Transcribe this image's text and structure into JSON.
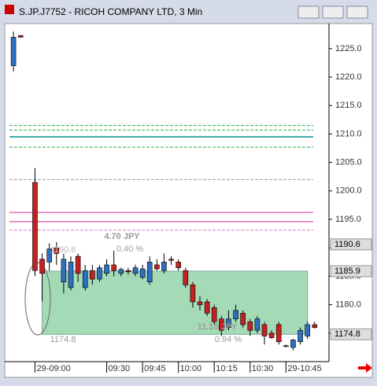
{
  "chart_data": {
    "type": "candlestick",
    "title": "S.JP.J7752 - RICOH COMPANY LTD, 3 Min",
    "x": [
      -9,
      -6,
      0,
      3,
      6,
      9,
      12,
      15,
      18,
      21,
      24,
      27,
      30,
      33,
      36,
      39,
      42,
      45,
      48,
      51,
      54,
      57,
      60,
      63,
      66,
      69,
      72,
      75,
      78,
      81,
      84,
      87,
      90,
      93,
      96,
      99,
      102,
      105,
      108,
      111,
      114,
      117
    ],
    "open": [
      1222,
      1227.3,
      1201.5,
      1188,
      1187.5,
      1190,
      1184,
      1183,
      1188.5,
      1183,
      1186,
      1184.5,
      1185.5,
      1187,
      1185.5,
      1186,
      1185.5,
      1184.8,
      1184,
      1187,
      1186,
      1188,
      1187.5,
      1186,
      1183.5,
      1180.5,
      1180.5,
      1179.5,
      1177.5,
      1176,
      1177.5,
      1178.5,
      1177,
      1175.5,
      1176.5,
      1175,
      1176.5,
      1172.8,
      1172.5,
      1173.5,
      1174.5,
      1176.5
    ],
    "high": [
      1228,
      1227.4,
      1204,
      1189,
      1190.8,
      1191,
      1189,
      1188.5,
      1189,
      1187,
      1187,
      1187,
      1188,
      1189.5,
      1186.5,
      1186.5,
      1187,
      1187,
      1188.5,
      1188,
      1189,
      1188.5,
      1188,
      1186.5,
      1184,
      1181.5,
      1181,
      1180,
      1178,
      1179,
      1180,
      1179,
      1177.5,
      1178,
      1177,
      1175.5,
      1177,
      1173,
      1174,
      1176,
      1177,
      1177
    ],
    "low": [
      1221,
      1227,
      1185,
      1180.6,
      1186,
      1187,
      1182,
      1182.5,
      1184,
      1182.5,
      1183.5,
      1184,
      1185,
      1185,
      1185,
      1185.3,
      1185,
      1184.5,
      1183.5,
      1186,
      1185.5,
      1187,
      1186,
      1183,
      1179.5,
      1179,
      1178,
      1176.5,
      1174.5,
      1175.5,
      1177,
      1176,
      1174.5,
      1175,
      1173,
      1174,
      1173,
      1172.5,
      1172,
      1173,
      1174,
      1175.8
    ],
    "close": [
      1227,
      1227,
      1186,
      1185.5,
      1189.8,
      1189,
      1188,
      1187.5,
      1185.5,
      1186,
      1184.5,
      1186.5,
      1187,
      1186,
      1186.2,
      1185.8,
      1186.5,
      1186.3,
      1187.5,
      1186.3,
      1187.5,
      1187.8,
      1186.5,
      1183.5,
      1180.5,
      1180,
      1178.5,
      1177,
      1175.5,
      1177.5,
      1179,
      1176.5,
      1175.5,
      1177.5,
      1174.5,
      1174.2,
      1173.5,
      1172.8,
      1173.8,
      1175.5,
      1176.5,
      1176
    ],
    "up_color": "#2e6fc0",
    "down_color": "#c42121",
    "xlim": [
      -12,
      123
    ],
    "ylim": [
      1170,
      1229.4
    ],
    "xticks": [
      {
        "value": 0,
        "label": "29-09:00"
      },
      {
        "value": 30,
        "label": "09:30"
      },
      {
        "value": 45,
        "label": "09:45"
      },
      {
        "value": 60,
        "label": "10:00"
      },
      {
        "value": 75,
        "label": "10:15"
      },
      {
        "value": 90,
        "label": "10:30"
      },
      {
        "value": 105,
        "label": "29-10:45"
      }
    ],
    "yticks": [
      {
        "value": 1175,
        "label": "1175.0"
      },
      {
        "value": 1180,
        "label": "1180.0"
      },
      {
        "value": 1185,
        "label": "1185.0"
      },
      {
        "value": 1190,
        "label": "1190.0"
      },
      {
        "value": 1195,
        "label": "1195.0"
      },
      {
        "value": 1200,
        "label": "1200.0"
      },
      {
        "value": 1205,
        "label": "1205.0"
      },
      {
        "value": 1210,
        "label": "1210.0"
      },
      {
        "value": 1215,
        "label": "1215.0"
      },
      {
        "value": 1220,
        "label": "1220.0"
      },
      {
        "value": 1225,
        "label": "1225.0"
      }
    ],
    "price_labels": [
      {
        "value": 1190.6,
        "label": "1190.6"
      },
      {
        "value": 1185.9,
        "label": "1185.9"
      },
      {
        "value": 1174.8,
        "label": "1174.8"
      }
    ],
    "levels": [
      {
        "value": 1211.5,
        "color": "#2db04a",
        "dash": true
      },
      {
        "value": 1210.7,
        "color": "#2db04a",
        "dash": true
      },
      {
        "value": 1209.5,
        "color": "#1b9a9a",
        "dash": false
      },
      {
        "value": 1207.7,
        "color": "#2db04a",
        "dash": true
      },
      {
        "value": 1202,
        "color": "#999999",
        "dash": true
      },
      {
        "value": 1196.2,
        "color": "#e377c2",
        "dash": false
      },
      {
        "value": 1194.6,
        "color": "#e377c2",
        "dash": false
      },
      {
        "value": 1193.1,
        "color": "#e377c2",
        "dash": true
      }
    ],
    "measure1": {
      "amount": "4.70 JPY",
      "percent": "0.40 %",
      "start": "1190.6"
    },
    "measure2": {
      "amount": "11.10 JPY",
      "percent": "0.94 %",
      "start": "1174.8"
    }
  }
}
